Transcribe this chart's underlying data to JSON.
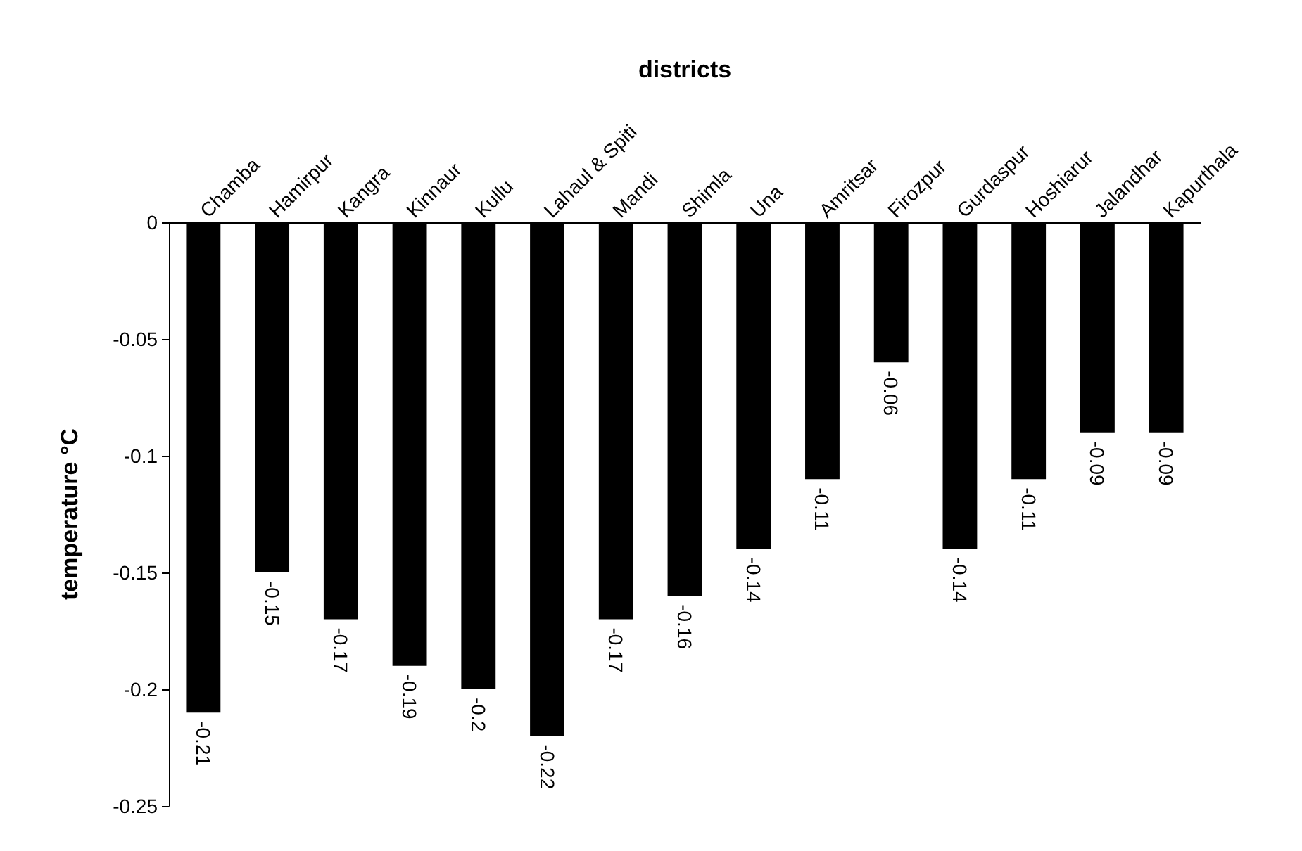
{
  "chart_data": {
    "type": "bar",
    "xlabel": "districts",
    "ylabel": "temperature °C",
    "categories": [
      "Chamba",
      "Hamirpur",
      "Kangra",
      "Kinnaur",
      "Kullu",
      "Lahaul & Spiti",
      "Mandi",
      "Shimla",
      "Una",
      "Amritsar",
      "Firozpur",
      "Gurdaspur",
      "Hoshiarur",
      "Jalandhar",
      "Kapurthala"
    ],
    "values": [
      -0.21,
      -0.15,
      -0.17,
      -0.19,
      -0.2,
      -0.22,
      -0.17,
      -0.16,
      -0.14,
      -0.11,
      -0.06,
      -0.14,
      -0.11,
      -0.09,
      -0.09
    ],
    "color": "#000000",
    "ylim": [
      -0.25,
      0
    ],
    "yticks": [
      -0.25,
      -0.2,
      -0.15,
      -0.1,
      -0.05,
      0
    ],
    "grid": false,
    "data_labels": true
  }
}
